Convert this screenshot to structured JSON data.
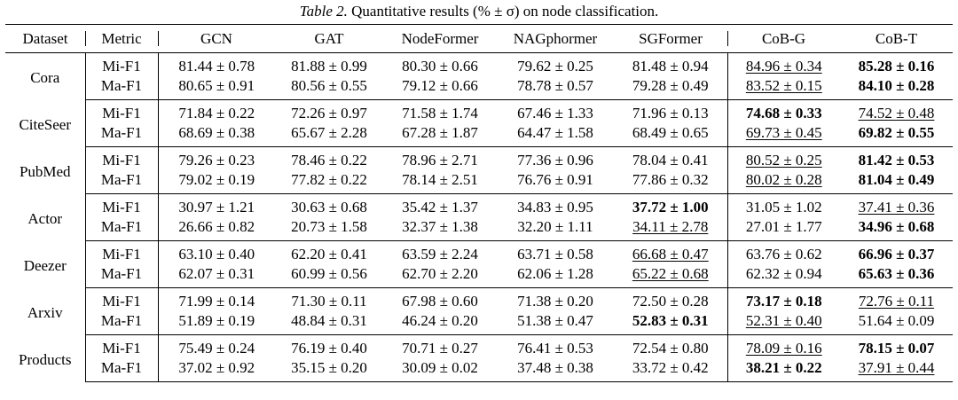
{
  "caption": {
    "number": "Table 2.",
    "pre": "Quantitative results (",
    "math": "% ± σ",
    "post": ") on node classification."
  },
  "headers": [
    "Dataset",
    "Metric",
    "GCN",
    "GAT",
    "NodeFormer",
    "NAGphormer",
    "SGFormer",
    "CoB-G",
    "CoB-T"
  ],
  "rows": [
    {
      "dataset": "Cora",
      "metrics": [
        {
          "metric": "Mi-F1",
          "cells": [
            {
              "v": "81.44 ± 0.78",
              "s": ""
            },
            {
              "v": "81.88 ± 0.99",
              "s": ""
            },
            {
              "v": "80.30 ± 0.66",
              "s": ""
            },
            {
              "v": "79.62 ± 0.25",
              "s": ""
            },
            {
              "v": "81.48 ± 0.94",
              "s": ""
            },
            {
              "v": "84.96 ± 0.34",
              "s": "second"
            },
            {
              "v": "85.28 ± 0.16",
              "s": "best"
            }
          ]
        },
        {
          "metric": "Ma-F1",
          "cells": [
            {
              "v": "80.65 ± 0.91",
              "s": ""
            },
            {
              "v": "80.56 ± 0.55",
              "s": ""
            },
            {
              "v": "79.12 ± 0.66",
              "s": ""
            },
            {
              "v": "78.78 ± 0.57",
              "s": ""
            },
            {
              "v": "79.28 ± 0.49",
              "s": ""
            },
            {
              "v": "83.52 ± 0.15",
              "s": "second"
            },
            {
              "v": "84.10 ± 0.28",
              "s": "best"
            }
          ]
        }
      ]
    },
    {
      "dataset": "CiteSeer",
      "metrics": [
        {
          "metric": "Mi-F1",
          "cells": [
            {
              "v": "71.84 ± 0.22",
              "s": ""
            },
            {
              "v": "72.26 ± 0.97",
              "s": ""
            },
            {
              "v": "71.58 ± 1.74",
              "s": ""
            },
            {
              "v": "67.46 ± 1.33",
              "s": ""
            },
            {
              "v": "71.96 ± 0.13",
              "s": ""
            },
            {
              "v": "74.68 ± 0.33",
              "s": "best"
            },
            {
              "v": "74.52 ± 0.48",
              "s": "second"
            }
          ]
        },
        {
          "metric": "Ma-F1",
          "cells": [
            {
              "v": "68.69 ± 0.38",
              "s": ""
            },
            {
              "v": "65.67 ± 2.28",
              "s": ""
            },
            {
              "v": "67.28 ± 1.87",
              "s": ""
            },
            {
              "v": "64.47 ± 1.58",
              "s": ""
            },
            {
              "v": "68.49 ± 0.65",
              "s": ""
            },
            {
              "v": "69.73 ± 0.45",
              "s": "second"
            },
            {
              "v": "69.82 ± 0.55",
              "s": "best"
            }
          ]
        }
      ]
    },
    {
      "dataset": "PubMed",
      "metrics": [
        {
          "metric": "Mi-F1",
          "cells": [
            {
              "v": "79.26 ± 0.23",
              "s": ""
            },
            {
              "v": "78.46 ± 0.22",
              "s": ""
            },
            {
              "v": "78.96 ± 2.71",
              "s": ""
            },
            {
              "v": "77.36 ± 0.96",
              "s": ""
            },
            {
              "v": "78.04 ± 0.41",
              "s": ""
            },
            {
              "v": "80.52 ± 0.25",
              "s": "second"
            },
            {
              "v": "81.42 ± 0.53",
              "s": "best"
            }
          ]
        },
        {
          "metric": "Ma-F1",
          "cells": [
            {
              "v": "79.02 ± 0.19",
              "s": ""
            },
            {
              "v": "77.82 ± 0.22",
              "s": ""
            },
            {
              "v": "78.14 ± 2.51",
              "s": ""
            },
            {
              "v": "76.76 ± 0.91",
              "s": ""
            },
            {
              "v": "77.86 ± 0.32",
              "s": ""
            },
            {
              "v": "80.02 ± 0.28",
              "s": "second"
            },
            {
              "v": "81.04 ± 0.49",
              "s": "best"
            }
          ]
        }
      ]
    },
    {
      "dataset": "Actor",
      "metrics": [
        {
          "metric": "Mi-F1",
          "cells": [
            {
              "v": "30.97 ± 1.21",
              "s": ""
            },
            {
              "v": "30.63 ± 0.68",
              "s": ""
            },
            {
              "v": "35.42 ± 1.37",
              "s": ""
            },
            {
              "v": "34.83 ± 0.95",
              "s": ""
            },
            {
              "v": "37.72 ± 1.00",
              "s": "best"
            },
            {
              "v": "31.05 ± 1.02",
              "s": ""
            },
            {
              "v": "37.41 ± 0.36",
              "s": "second"
            }
          ]
        },
        {
          "metric": "Ma-F1",
          "cells": [
            {
              "v": "26.66 ± 0.82",
              "s": ""
            },
            {
              "v": "20.73 ± 1.58",
              "s": ""
            },
            {
              "v": "32.37 ± 1.38",
              "s": ""
            },
            {
              "v": "32.20 ± 1.11",
              "s": ""
            },
            {
              "v": "34.11 ± 2.78",
              "s": "second"
            },
            {
              "v": "27.01 ± 1.77",
              "s": ""
            },
            {
              "v": "34.96 ± 0.68",
              "s": "best"
            }
          ]
        }
      ]
    },
    {
      "dataset": "Deezer",
      "metrics": [
        {
          "metric": "Mi-F1",
          "cells": [
            {
              "v": "63.10 ± 0.40",
              "s": ""
            },
            {
              "v": "62.20 ± 0.41",
              "s": ""
            },
            {
              "v": "63.59 ± 2.24",
              "s": ""
            },
            {
              "v": "63.71 ± 0.58",
              "s": ""
            },
            {
              "v": "66.68 ± 0.47",
              "s": "second"
            },
            {
              "v": "63.76 ± 0.62",
              "s": ""
            },
            {
              "v": "66.96 ± 0.37",
              "s": "best"
            }
          ]
        },
        {
          "metric": "Ma-F1",
          "cells": [
            {
              "v": "62.07 ± 0.31",
              "s": ""
            },
            {
              "v": "60.99 ± 0.56",
              "s": ""
            },
            {
              "v": "62.70 ± 2.20",
              "s": ""
            },
            {
              "v": "62.06 ± 1.28",
              "s": ""
            },
            {
              "v": "65.22 ± 0.68",
              "s": "second"
            },
            {
              "v": "62.32 ± 0.94",
              "s": ""
            },
            {
              "v": "65.63 ± 0.36",
              "s": "best"
            }
          ]
        }
      ]
    },
    {
      "dataset": "Arxiv",
      "metrics": [
        {
          "metric": "Mi-F1",
          "cells": [
            {
              "v": "71.99 ± 0.14",
              "s": ""
            },
            {
              "v": "71.30 ± 0.11",
              "s": ""
            },
            {
              "v": "67.98 ± 0.60",
              "s": ""
            },
            {
              "v": "71.38 ± 0.20",
              "s": ""
            },
            {
              "v": "72.50 ± 0.28",
              "s": ""
            },
            {
              "v": "73.17 ± 0.18",
              "s": "best"
            },
            {
              "v": "72.76 ± 0.11",
              "s": "second"
            }
          ]
        },
        {
          "metric": "Ma-F1",
          "cells": [
            {
              "v": "51.89 ± 0.19",
              "s": ""
            },
            {
              "v": "48.84 ± 0.31",
              "s": ""
            },
            {
              "v": "46.24 ± 0.20",
              "s": ""
            },
            {
              "v": "51.38 ± 0.47",
              "s": ""
            },
            {
              "v": "52.83 ± 0.31",
              "s": "best"
            },
            {
              "v": "52.31 ± 0.40",
              "s": "second"
            },
            {
              "v": "51.64 ± 0.09",
              "s": ""
            }
          ]
        }
      ]
    },
    {
      "dataset": "Products",
      "metrics": [
        {
          "metric": "Mi-F1",
          "cells": [
            {
              "v": "75.49 ± 0.24",
              "s": ""
            },
            {
              "v": "76.19 ± 0.40",
              "s": ""
            },
            {
              "v": "70.71 ± 0.27",
              "s": ""
            },
            {
              "v": "76.41 ± 0.53",
              "s": ""
            },
            {
              "v": "72.54 ± 0.80",
              "s": ""
            },
            {
              "v": "78.09 ± 0.16",
              "s": "second"
            },
            {
              "v": "78.15 ± 0.07",
              "s": "best"
            }
          ]
        },
        {
          "metric": "Ma-F1",
          "cells": [
            {
              "v": "37.02 ± 0.92",
              "s": ""
            },
            {
              "v": "35.15 ± 0.20",
              "s": ""
            },
            {
              "v": "30.09 ± 0.02",
              "s": ""
            },
            {
              "v": "37.48 ± 0.38",
              "s": ""
            },
            {
              "v": "33.72 ± 0.42",
              "s": ""
            },
            {
              "v": "38.21 ± 0.22",
              "s": "best"
            },
            {
              "v": "37.91 ± 0.44",
              "s": "second"
            }
          ]
        }
      ]
    }
  ]
}
